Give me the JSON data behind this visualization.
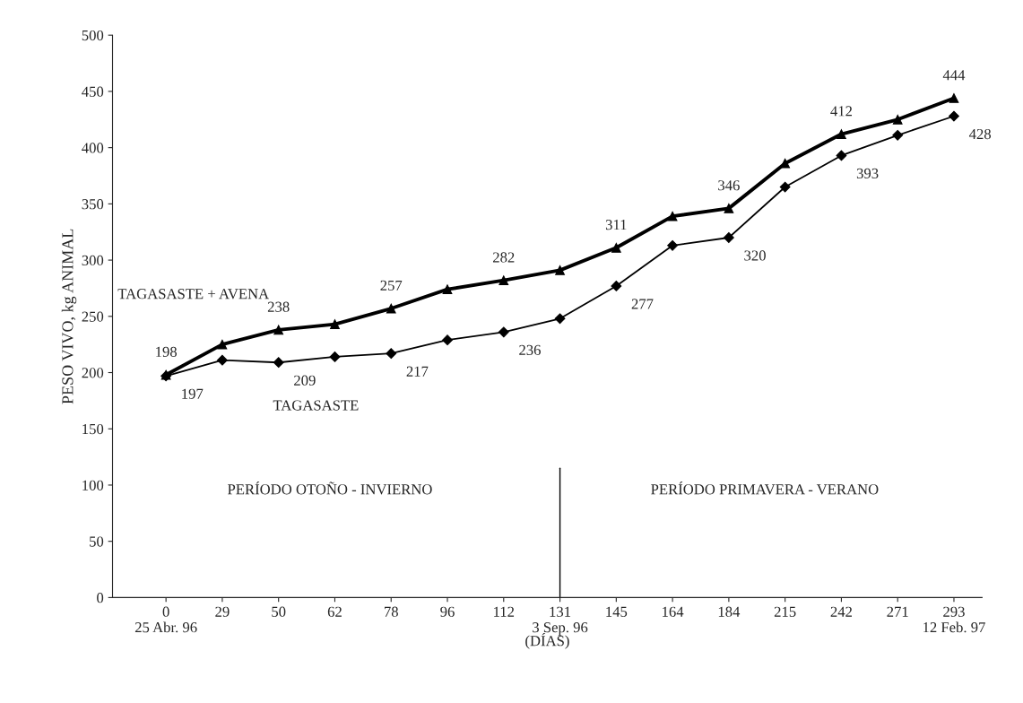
{
  "chart_data": {
    "type": "line",
    "ylabel": "PESO VIVO, kg ANIMAL",
    "xlabel": "(DÍAS)",
    "categories": [
      "0\n25 Abr. 96",
      "29",
      "50",
      "62",
      "78",
      "96",
      "112",
      "131\n3 Sep. 96",
      "145",
      "164",
      "184",
      "215",
      "242",
      "271",
      "293\n12 Feb. 97"
    ],
    "series": [
      {
        "name": "TAGASASTE + AVENA",
        "color": "#000000",
        "marker": "triangle",
        "values": [
          198,
          225,
          238,
          243,
          257,
          274,
          282,
          291,
          311,
          339,
          346,
          386,
          412,
          425,
          444
        ],
        "value_labels": [
          "198",
          null,
          "238",
          null,
          "257",
          null,
          "282",
          null,
          "311",
          null,
          "346",
          null,
          "412",
          null,
          "444"
        ]
      },
      {
        "name": "TAGASASTE",
        "color": "#000000",
        "marker": "diamond",
        "values": [
          197,
          211,
          209,
          214,
          217,
          229,
          236,
          248,
          277,
          313,
          320,
          365,
          393,
          411,
          428
        ],
        "value_labels": [
          "197",
          null,
          "209",
          null,
          "217",
          null,
          "236",
          null,
          "277",
          null,
          "320",
          null,
          "393",
          null,
          "428"
        ]
      }
    ],
    "ylim": [
      0,
      500
    ],
    "yticks": [
      0,
      50,
      100,
      150,
      200,
      250,
      300,
      350,
      400,
      450,
      500
    ],
    "ref_lines": [
      {
        "axis": "x",
        "value": "131\n3 Sep. 96",
        "color": "#000000"
      }
    ],
    "annotations": [
      "PERÍODO OTOÑO - INVIERNO",
      "PERÍODO PRIMAVERA - VERANO"
    ],
    "grid": false,
    "legend": false,
    "line_style": "solid"
  }
}
